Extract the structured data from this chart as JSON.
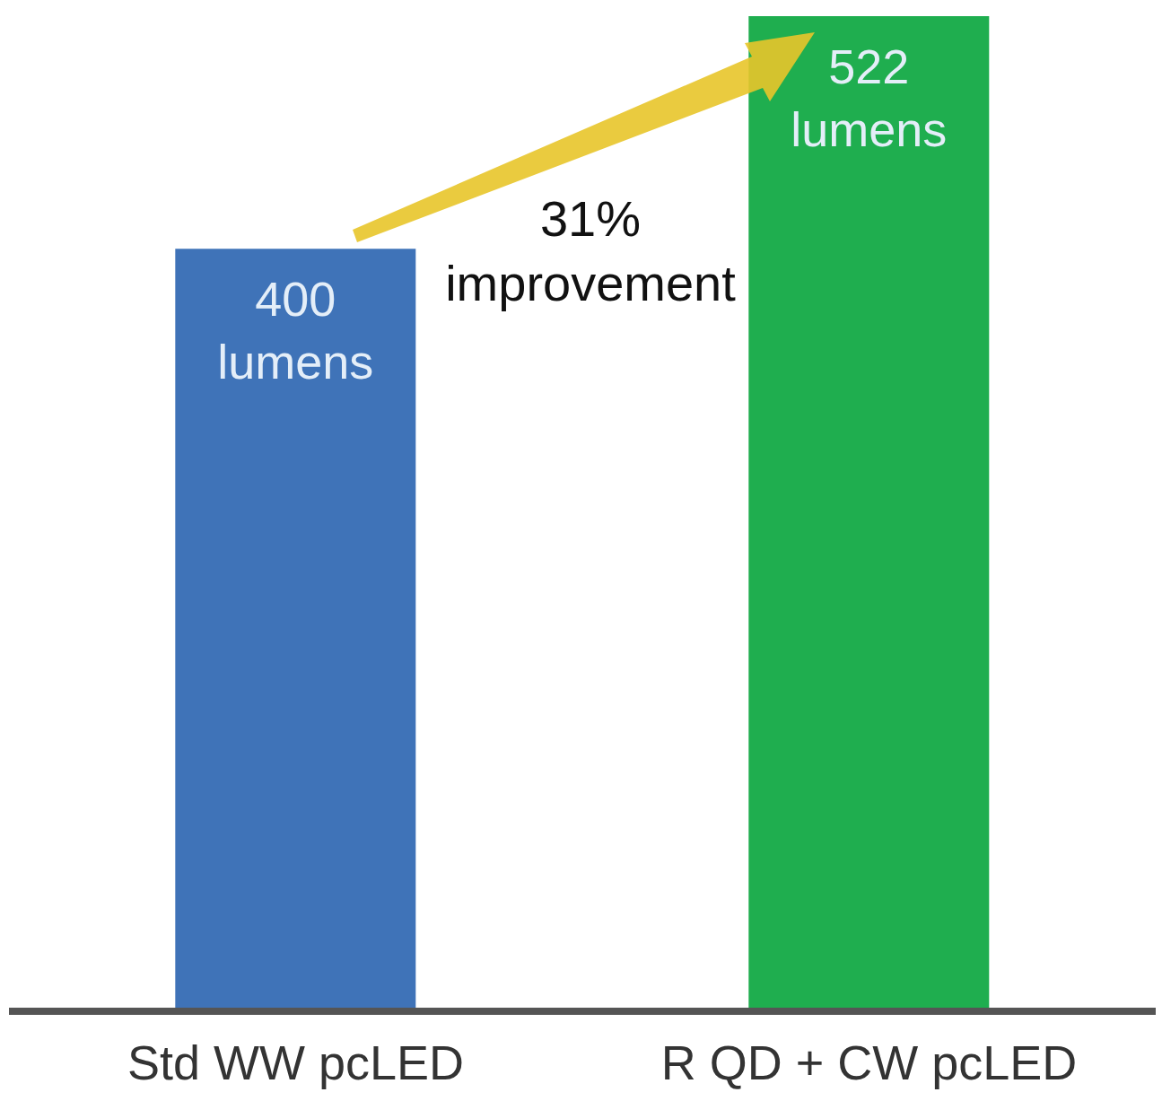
{
  "chart_data": {
    "type": "bar",
    "categories": [
      "Std WW pcLED",
      "R QD + CW pcLED"
    ],
    "values": [
      400,
      522
    ],
    "colors": [
      "#3f73b8",
      "#1fae4f"
    ],
    "value_labels": [
      "400 lumens",
      "522 lumens"
    ],
    "annotations": [
      "31% improvement"
    ]
  }
}
